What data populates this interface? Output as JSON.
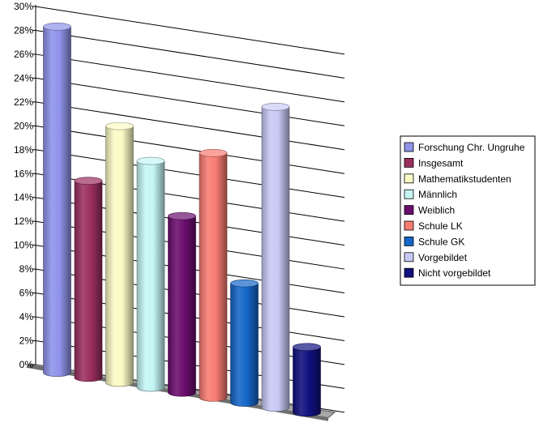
{
  "chart_data": {
    "type": "bar",
    "title": "",
    "xlabel": "",
    "ylabel": "",
    "ylim": [
      0,
      30
    ],
    "y_ticks": [
      "0%",
      "2%",
      "4%",
      "6%",
      "8%",
      "10%",
      "12%",
      "14%",
      "16%",
      "18%",
      "20%",
      "22%",
      "24%",
      "26%",
      "28%",
      "30%"
    ],
    "grid": true,
    "legend_position": "right",
    "style": "3d-cylinder",
    "series": [
      {
        "name": "Forschung Chr. Ungruhe",
        "value": 29.0,
        "color": "#8f92e9"
      },
      {
        "name": "Insgesamt",
        "value": 16.5,
        "color": "#9b2f5f"
      },
      {
        "name": "Mathematikstudenten",
        "value": 21.5,
        "color": "#fbfbc5"
      },
      {
        "name": "Männlich",
        "value": 19.0,
        "color": "#c4f5f5"
      },
      {
        "name": "Weiblich",
        "value": 14.8,
        "color": "#6a0d6e"
      },
      {
        "name": "Schule LK",
        "value": 20.5,
        "color": "#f87b72"
      },
      {
        "name": "Schule GK",
        "value": 10.0,
        "color": "#1466c8"
      },
      {
        "name": "Vorgebildet",
        "value": 25.2,
        "color": "#c8c8f5"
      },
      {
        "name": "Nicht vorgebildet",
        "value": 5.5,
        "color": "#10107e"
      }
    ]
  }
}
